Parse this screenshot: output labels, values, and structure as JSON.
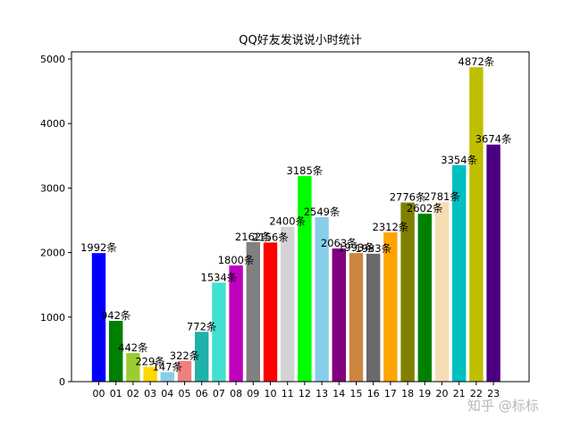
{
  "chart_data": {
    "type": "bar",
    "title": "QQ好友发说说小时统计",
    "xlabel": "",
    "ylabel": "",
    "ylim": [
      0,
      5000
    ],
    "yticks": [
      "0",
      "1000",
      "2000",
      "3000",
      "4000",
      "5000"
    ],
    "grid": false,
    "categories": [
      "00",
      "01",
      "02",
      "03",
      "04",
      "05",
      "06",
      "07",
      "08",
      "09",
      "10",
      "11",
      "12",
      "13",
      "14",
      "15",
      "16",
      "17",
      "18",
      "19",
      "20",
      "21",
      "22",
      "23"
    ],
    "values": [
      1992,
      942,
      442,
      229,
      147,
      322,
      772,
      1534,
      1800,
      2162,
      2156,
      2400,
      3185,
      2549,
      2063,
      1993,
      1983,
      2312,
      2776,
      2602,
      2781,
      3354,
      4872,
      3674
    ],
    "labels": [
      "1992条",
      "942条",
      "442条",
      "229条",
      "147条",
      "322条",
      "772条",
      "1534条",
      "1800条",
      "2162条",
      "2156条",
      "2400条",
      "3185条",
      "2549条",
      "2063条",
      "1993条",
      "1983条",
      "2312条",
      "2776条",
      "2602条",
      "2781条",
      "3354条",
      "4872条",
      "3674条"
    ],
    "colors": [
      "#0000ff",
      "#008000",
      "#9acd32",
      "#ffd700",
      "#87ceeb",
      "#f08080",
      "#20b2aa",
      "#40e0d0",
      "#bf00bf",
      "#808080",
      "#ff0000",
      "#d3d3d3",
      "#00ff00",
      "#87ceeb",
      "#800080",
      "#cd853f",
      "#696969",
      "#ffa500",
      "#808000",
      "#008000",
      "#f5deb3",
      "#00bfbf",
      "#bfbf00",
      "#4b0082"
    ]
  },
  "watermark": "知乎 @标标"
}
